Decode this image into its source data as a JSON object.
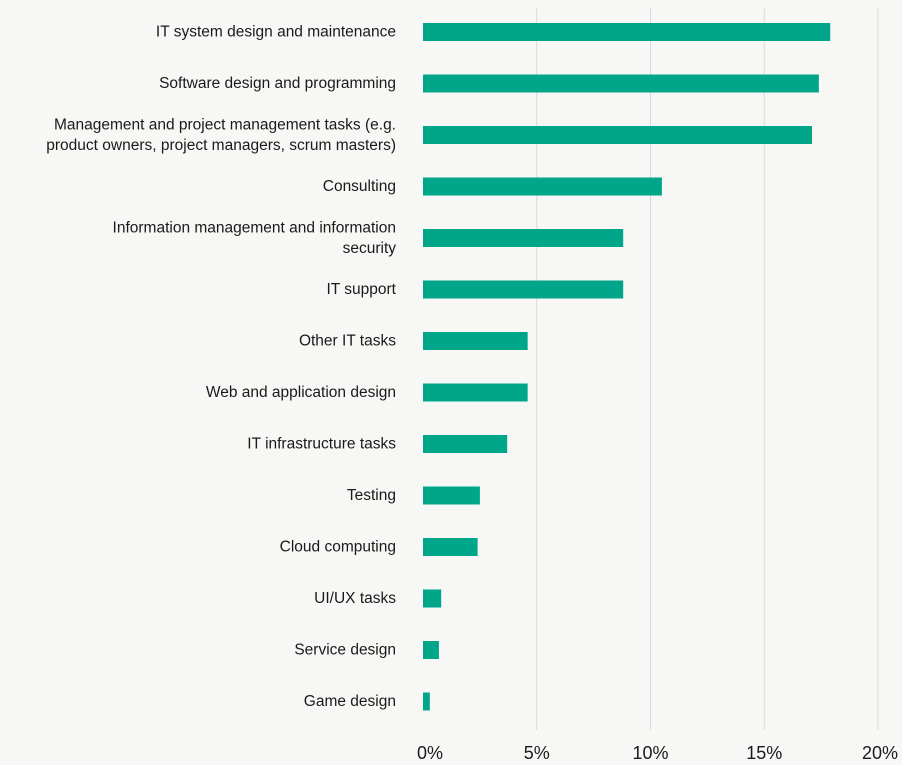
{
  "chart_data": {
    "type": "bar",
    "orientation": "horizontal",
    "categories": [
      "IT system design and maintenance",
      "Software design and programming",
      "Management and project management tasks (e.g. product owners, project managers, scrum masters)",
      "Consulting",
      "Information management and information security",
      "IT support",
      "Other IT tasks",
      "Web and application design",
      "IT infrastructure tasks",
      "Testing",
      "Cloud computing",
      "UI/UX tasks",
      "Service design",
      "Game design"
    ],
    "category_lines": [
      [
        "IT system design and maintenance"
      ],
      [
        "Software design and programming"
      ],
      [
        "Management and project management tasks (e.g.",
        "product owners, project managers, scrum masters)"
      ],
      [
        "Consulting"
      ],
      [
        "Information management and information",
        "security"
      ],
      [
        "IT support"
      ],
      [
        "Other IT tasks"
      ],
      [
        "Web and application design"
      ],
      [
        "IT infrastructure tasks"
      ],
      [
        "Testing"
      ],
      [
        "Cloud computing"
      ],
      [
        "UI/UX tasks"
      ],
      [
        "Service design"
      ],
      [
        "Game design"
      ]
    ],
    "values": [
      17.9,
      17.4,
      17.1,
      10.5,
      8.8,
      8.8,
      4.6,
      4.6,
      3.7,
      2.5,
      2.4,
      0.8,
      0.7,
      0.3
    ],
    "xlim": [
      0,
      20
    ],
    "xticks": [
      0,
      5,
      10,
      15,
      20
    ],
    "xtick_labels": [
      "0%",
      "5%",
      "10%",
      "15%",
      "20%"
    ],
    "grid": true,
    "bar_color": "#00a689",
    "title": "",
    "xlabel": "",
    "ylabel": ""
  }
}
